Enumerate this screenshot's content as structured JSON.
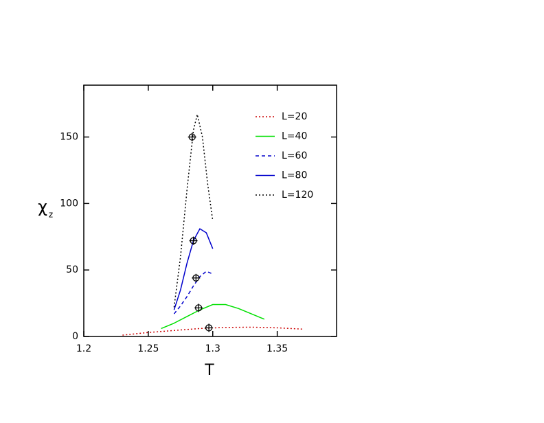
{
  "chart_data": {
    "type": "line",
    "xlabel": "T",
    "ylabel": "χ",
    "ylabel_subscript": "z",
    "xlim": [
      1.2,
      1.396
    ],
    "ylim": [
      0,
      189
    ],
    "xticks": [
      1.2,
      1.25,
      1.3,
      1.35
    ],
    "yticks": [
      0,
      50,
      100,
      150
    ],
    "legend": "upper right",
    "series": [
      {
        "name": "L=20",
        "color": "#cc0000",
        "dash": "dotted",
        "x": [
          1.23,
          1.25,
          1.27,
          1.29,
          1.31,
          1.33,
          1.35,
          1.37
        ],
        "values": [
          1,
          3,
          4.5,
          6,
          6.8,
          7,
          6.5,
          5.5
        ]
      },
      {
        "name": "L=40",
        "color": "#00e000",
        "dash": "solid",
        "x": [
          1.26,
          1.27,
          1.28,
          1.29,
          1.3,
          1.31,
          1.32,
          1.33,
          1.34
        ],
        "values": [
          6,
          10,
          15,
          20,
          24,
          24,
          21,
          17,
          13
        ]
      },
      {
        "name": "L=60",
        "color": "#0000cc",
        "dash": "dashed",
        "x": [
          1.27,
          1.275,
          1.28,
          1.285,
          1.29,
          1.295,
          1.3
        ],
        "values": [
          17,
          23,
          30,
          38,
          45,
          49,
          47
        ]
      },
      {
        "name": "L=80",
        "color": "#0000cc",
        "dash": "solid",
        "x": [
          1.27,
          1.275,
          1.28,
          1.285,
          1.29,
          1.295,
          1.3
        ],
        "values": [
          20,
          35,
          55,
          72,
          81,
          78,
          66
        ]
      },
      {
        "name": "L=120",
        "color": "#000000",
        "dash": "dotted",
        "x": [
          1.27,
          1.275,
          1.28,
          1.285,
          1.288,
          1.292,
          1.296,
          1.3
        ],
        "values": [
          22,
          60,
          110,
          155,
          167,
          150,
          115,
          87
        ]
      }
    ],
    "markers": {
      "color": "#000000",
      "x": [
        1.284,
        1.285,
        1.287,
        1.289,
        1.297
      ],
      "values": [
        150,
        72,
        44,
        21.5,
        6.5
      ]
    }
  }
}
